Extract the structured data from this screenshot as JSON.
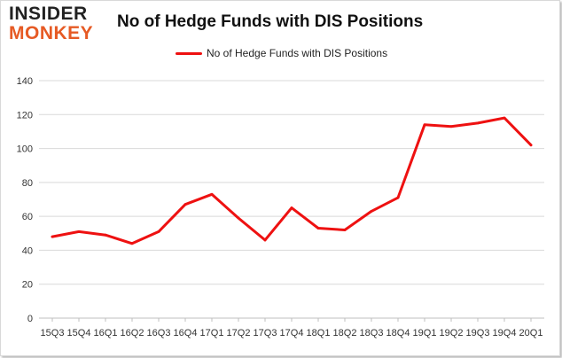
{
  "logo": {
    "line1": "INSIDER",
    "line2": "MONKEY"
  },
  "colors": {
    "series": "#ee1111",
    "grid": "#d9d9d9",
    "logo_accent": "#e65a24"
  },
  "chart_data": {
    "type": "line",
    "title": "No of Hedge Funds with DIS Positions",
    "legend_position": "top",
    "grid": true,
    "ylim": [
      0,
      140
    ],
    "yticks": [
      0,
      20,
      40,
      60,
      80,
      100,
      120,
      140
    ],
    "categories": [
      "15Q3",
      "15Q4",
      "16Q1",
      "16Q2",
      "16Q3",
      "16Q4",
      "17Q1",
      "17Q2",
      "17Q3",
      "17Q4",
      "18Q1",
      "18Q2",
      "18Q3",
      "18Q4",
      "19Q1",
      "19Q2",
      "19Q3",
      "19Q4",
      "20Q1"
    ],
    "series": [
      {
        "name": "No of Hedge Funds with DIS Positions",
        "values": [
          48,
          51,
          49,
          44,
          51,
          67,
          73,
          59,
          46,
          65,
          53,
          52,
          63,
          71,
          114,
          113,
          115,
          118,
          102
        ]
      }
    ]
  }
}
